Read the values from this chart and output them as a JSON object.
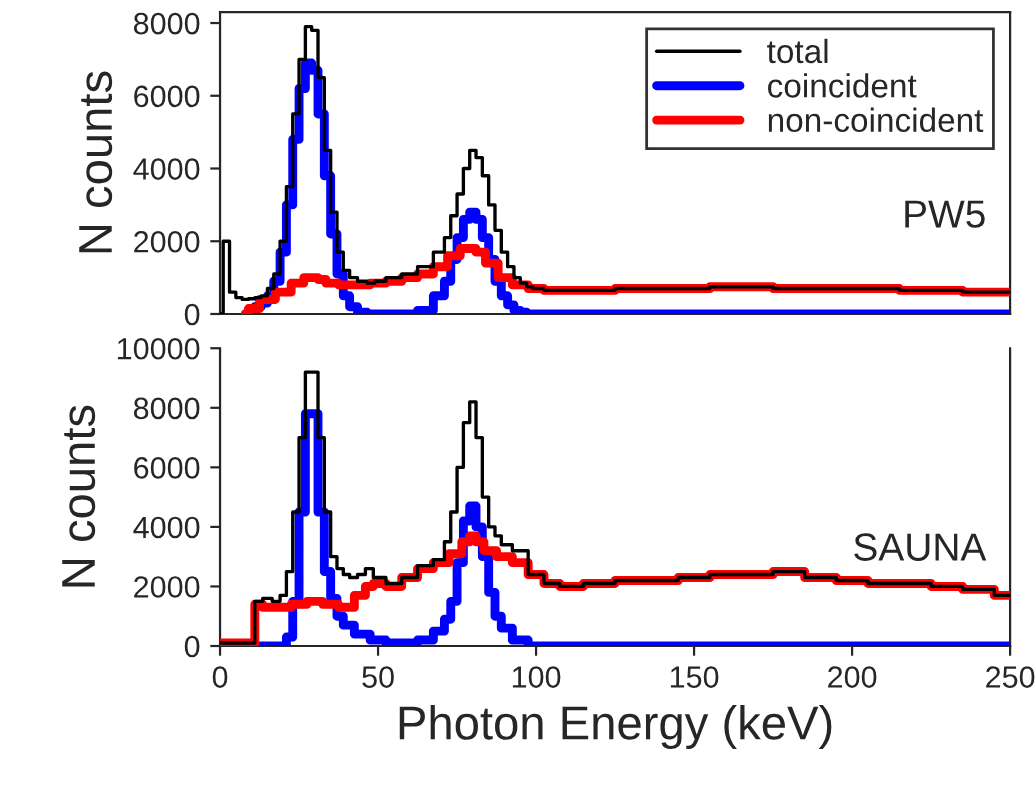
{
  "chart_data": [
    {
      "type": "step",
      "ylabel": "N counts",
      "annotations": [
        "PW5"
      ],
      "xlim": [
        0,
        250
      ],
      "ylim": [
        0,
        8300
      ],
      "yticks": [
        0,
        2000,
        4000,
        6000,
        8000
      ],
      "tick_labels": "y",
      "legend": "top right",
      "grid": false,
      "marker": "none",
      "line_style": "solid",
      "series": [
        {
          "name": "total",
          "color": "#000000",
          "x": [
            0,
            2,
            4,
            6,
            8,
            10,
            12,
            14,
            16,
            18,
            20,
            22,
            24,
            26,
            28,
            30,
            32,
            34,
            36,
            38,
            40,
            42,
            45,
            48,
            50,
            55,
            60,
            65,
            70,
            72,
            74,
            76,
            78,
            80,
            82,
            84,
            86,
            88,
            90,
            92,
            94,
            96,
            98,
            100,
            105,
            110,
            120,
            130,
            140,
            150,
            160,
            170,
            180,
            190,
            200,
            210,
            220,
            230,
            240,
            250
          ],
          "values": [
            0,
            2000,
            600,
            450,
            400,
            420,
            450,
            500,
            700,
            1100,
            2000,
            3500,
            5500,
            7000,
            7900,
            7800,
            6500,
            4500,
            2800,
            1700,
            1200,
            1000,
            900,
            850,
            900,
            1000,
            1100,
            1300,
            1700,
            2100,
            2700,
            3300,
            4000,
            4500,
            4300,
            3800,
            3000,
            2300,
            1700,
            1300,
            1000,
            850,
            750,
            700,
            650,
            650,
            650,
            700,
            700,
            700,
            750,
            750,
            700,
            700,
            700,
            700,
            650,
            650,
            600,
            600
          ]
        },
        {
          "name": "coincident",
          "color": "#0000ff",
          "x": [
            8,
            10,
            12,
            14,
            16,
            18,
            20,
            22,
            24,
            26,
            28,
            30,
            32,
            34,
            36,
            38,
            40,
            42,
            45,
            48,
            50,
            55,
            60,
            65,
            70,
            72,
            74,
            76,
            78,
            80,
            82,
            84,
            86,
            88,
            90,
            92,
            94,
            96,
            98,
            100,
            105,
            110,
            150,
            200,
            250
          ],
          "values": [
            0,
            100,
            200,
            300,
            500,
            900,
            1700,
            3000,
            4800,
            6200,
            6900,
            6700,
            5500,
            3800,
            2200,
            1100,
            500,
            200,
            50,
            0,
            0,
            0,
            0,
            100,
            500,
            900,
            1500,
            2100,
            2600,
            2800,
            2600,
            2100,
            1500,
            900,
            500,
            250,
            100,
            50,
            0,
            0,
            0,
            0,
            0,
            0,
            0
          ]
        },
        {
          "name": "non-coincident",
          "color": "#ff0000",
          "x": [
            8,
            10,
            15,
            20,
            25,
            28,
            30,
            32,
            35,
            40,
            45,
            50,
            55,
            60,
            65,
            70,
            74,
            78,
            80,
            82,
            86,
            90,
            95,
            100,
            105,
            110,
            120,
            130,
            140,
            150,
            160,
            170,
            180,
            190,
            200,
            210,
            220,
            230,
            240,
            250
          ],
          "values": [
            0,
            150,
            400,
            600,
            850,
            1000,
            1000,
            950,
            850,
            800,
            800,
            850,
            900,
            1000,
            1100,
            1300,
            1600,
            1800,
            1800,
            1700,
            1400,
            1000,
            800,
            700,
            650,
            650,
            650,
            700,
            700,
            700,
            750,
            750,
            700,
            700,
            700,
            700,
            650,
            650,
            600,
            600
          ]
        }
      ]
    },
    {
      "type": "step",
      "xlabel": "Photon Energy (keV)",
      "ylabel": "N counts",
      "annotations": [
        "SAUNA"
      ],
      "xlim": [
        0,
        250
      ],
      "xticks": [
        0,
        50,
        100,
        150,
        200,
        250
      ],
      "ylim": [
        0,
        10000
      ],
      "yticks": [
        0,
        2000,
        4000,
        6000,
        8000,
        10000
      ],
      "grid": false,
      "marker": "none",
      "line_style": "solid",
      "series": [
        {
          "color": "#000000",
          "x": [
            0,
            5,
            10,
            12,
            15,
            18,
            20,
            22,
            24,
            26,
            28,
            30,
            32,
            34,
            36,
            38,
            40,
            42,
            45,
            47,
            50,
            55,
            60,
            65,
            70,
            72,
            74,
            76,
            78,
            80,
            82,
            84,
            86,
            88,
            90,
            95,
            100,
            105,
            110,
            120,
            130,
            140,
            150,
            160,
            170,
            180,
            190,
            200,
            210,
            220,
            230,
            240,
            250
          ],
          "values": [
            100,
            100,
            100,
            1500,
            1600,
            1500,
            1700,
            2500,
            4500,
            7000,
            9200,
            9200,
            7000,
            4500,
            3000,
            2600,
            2400,
            2300,
            2400,
            2600,
            2300,
            2100,
            2300,
            2700,
            2900,
            3500,
            4500,
            6000,
            7500,
            8200,
            7000,
            5000,
            4000,
            3700,
            3400,
            3200,
            2400,
            2100,
            2000,
            2100,
            2200,
            2200,
            2300,
            2400,
            2400,
            2500,
            2300,
            2200,
            2100,
            2100,
            2000,
            1900,
            1700
          ]
        },
        {
          "color": "#0000ff",
          "x": [
            0,
            10,
            20,
            22,
            24,
            26,
            28,
            30,
            32,
            34,
            36,
            38,
            40,
            45,
            50,
            55,
            60,
            65,
            70,
            72,
            74,
            76,
            78,
            80,
            82,
            84,
            86,
            88,
            90,
            95,
            100,
            110,
            150,
            200,
            250
          ],
          "values": [
            0,
            0,
            0,
            300,
            1500,
            4500,
            7800,
            7800,
            4500,
            2500,
            1600,
            1000,
            700,
            400,
            200,
            100,
            100,
            200,
            500,
            900,
            1500,
            2800,
            4200,
            4700,
            4000,
            3000,
            1800,
            1000,
            600,
            200,
            0,
            0,
            0,
            0,
            0
          ]
        },
        {
          "color": "#ff0000",
          "x": [
            0,
            5,
            10,
            12,
            15,
            20,
            25,
            30,
            35,
            40,
            45,
            47,
            50,
            55,
            60,
            65,
            70,
            75,
            78,
            80,
            82,
            85,
            90,
            95,
            100,
            105,
            110,
            120,
            130,
            140,
            150,
            160,
            170,
            180,
            190,
            200,
            210,
            220,
            230,
            240,
            250
          ],
          "values": [
            100,
            100,
            100,
            1400,
            1300,
            1300,
            1400,
            1500,
            1400,
            1300,
            1700,
            2000,
            2100,
            2000,
            2300,
            2600,
            2800,
            3100,
            3500,
            3700,
            3500,
            3200,
            3000,
            2800,
            2400,
            2100,
            2000,
            2100,
            2200,
            2200,
            2300,
            2400,
            2400,
            2500,
            2300,
            2200,
            2100,
            2100,
            2000,
            1900,
            1700
          ]
        }
      ]
    }
  ]
}
